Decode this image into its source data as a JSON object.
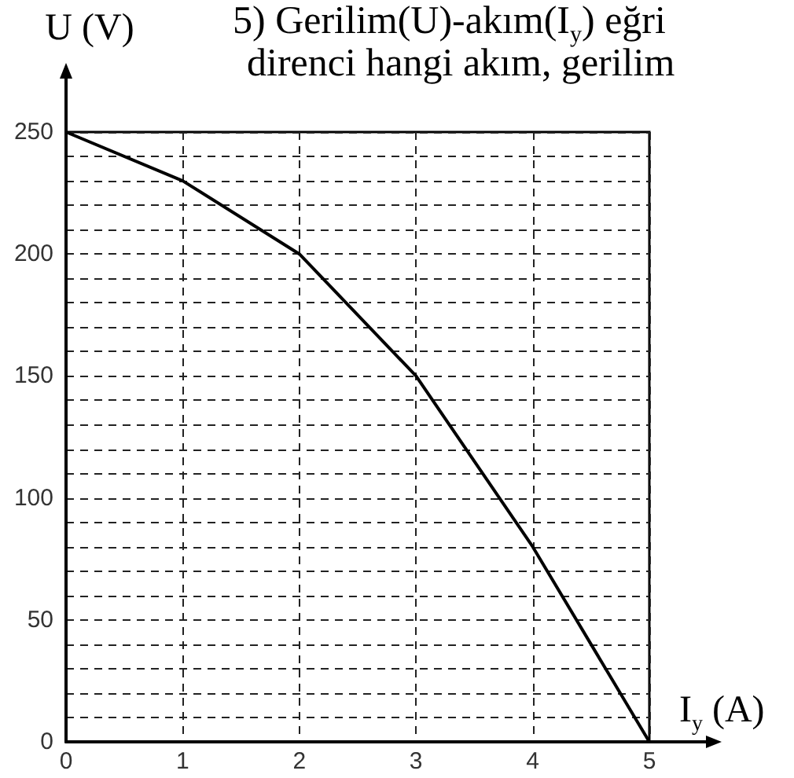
{
  "chart_data": {
    "type": "line",
    "xlabel": "I$_{y}$ (A)",
    "ylabel": "U (V)",
    "annotations": [
      "5) Gerilim(U)-akım(I$_{y}$) eğri",
      "direnci hangi akım, gerilim"
    ],
    "x": [
      0,
      1,
      2,
      3,
      4,
      5
    ],
    "values": [
      250,
      230,
      200,
      150,
      80,
      0
    ],
    "color": "#000000",
    "xlim": [
      0,
      5
    ],
    "ylim": [
      0,
      250
    ],
    "xticks": [
      0,
      1,
      2,
      3,
      4,
      5
    ],
    "yticks": [
      0,
      {
        "value": 10,
        "label": null
      },
      {
        "value": 20,
        "label": null
      },
      {
        "value": 30,
        "label": null
      },
      {
        "value": 40,
        "label": null
      },
      50,
      {
        "value": 60,
        "label": null
      },
      {
        "value": 70,
        "label": null
      },
      {
        "value": 80,
        "label": null
      },
      {
        "value": 90,
        "label": null
      },
      100,
      {
        "value": 110,
        "label": null
      },
      {
        "value": 120,
        "label": null
      },
      {
        "value": 130,
        "label": null
      },
      {
        "value": 140,
        "label": null
      },
      150,
      {
        "value": 160,
        "label": null
      },
      {
        "value": 170,
        "label": null
      },
      {
        "value": 180,
        "label": null
      },
      {
        "value": 190,
        "label": null
      },
      200,
      {
        "value": 210,
        "label": null
      },
      {
        "value": 220,
        "label": null
      },
      {
        "value": 230,
        "label": null
      },
      {
        "value": 240,
        "label": null
      },
      250
    ],
    "grid": true,
    "marker": "none",
    "line_style": "solid"
  }
}
